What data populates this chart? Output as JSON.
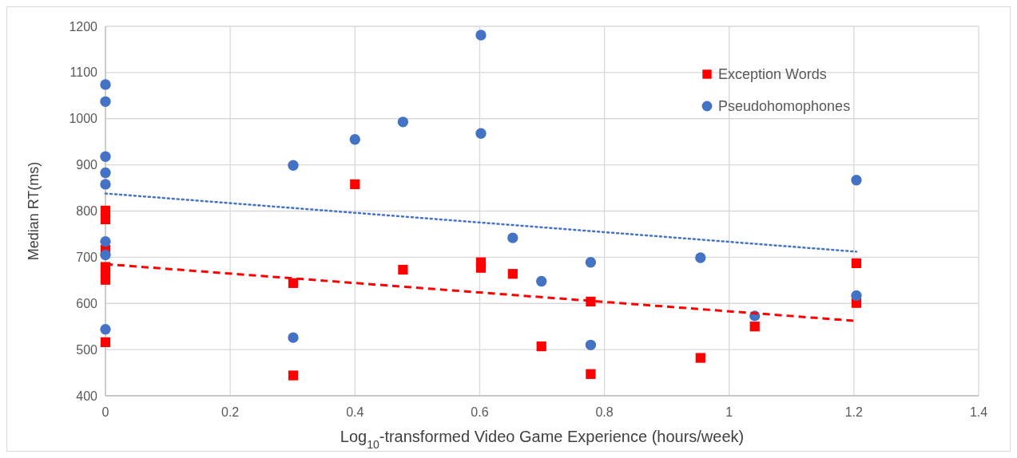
{
  "chart_data": {
    "type": "scatter",
    "xlabel": "Log$_{10}$-transformed Video Game Experience (hours/week)",
    "ylabel": "Median RT(ms)",
    "xlim": [
      0,
      1.4
    ],
    "xticks": [
      0,
      0.2,
      0.4,
      0.6,
      0.8,
      1,
      1.2,
      1.4
    ],
    "ylim": [
      400,
      1200
    ],
    "yticks": [
      400,
      500,
      600,
      700,
      800,
      900,
      1000,
      1100,
      1200
    ],
    "grid": true,
    "legend": "top right",
    "series": [
      {
        "name": "Exception Words",
        "color": "#ff0000",
        "marker": "square",
        "x": [
          0,
          0,
          0,
          0,
          0,
          0,
          0,
          0.301,
          0.301,
          0.4,
          0.477,
          0.602,
          0.602,
          0.653,
          0.699,
          0.778,
          0.778,
          0.954,
          1.041,
          1.204,
          1.204
        ],
        "values": [
          801,
          782,
          716,
          679,
          665,
          651,
          516,
          644,
          444,
          858,
          673,
          689,
          677,
          664,
          507,
          604,
          447,
          482,
          550,
          687,
          601
        ]
      },
      {
        "name": "Pseudohomophones",
        "color": "#4472c4",
        "marker": "circle",
        "x": [
          0,
          0,
          0,
          0,
          0,
          0,
          0,
          0,
          0.301,
          0.301,
          0.4,
          0.477,
          0.602,
          0.602,
          0.653,
          0.699,
          0.778,
          0.778,
          0.954,
          1.041,
          1.204,
          1.204
        ],
        "values": [
          1074,
          1037,
          918,
          883,
          858,
          734,
          705,
          544,
          899,
          526,
          955,
          993,
          1181,
          968,
          742,
          648,
          689,
          510,
          699,
          573,
          867,
          617
        ]
      },
      {
        "type": "line",
        "color": "#4472c4",
        "line_style": "dotted",
        "x": [
          0,
          1.204
        ],
        "values": [
          838,
          712
        ]
      },
      {
        "type": "line",
        "color": "#ff0000",
        "line_style": "dashed",
        "x": [
          0,
          1.204
        ],
        "values": [
          685,
          562
        ]
      }
    ]
  }
}
